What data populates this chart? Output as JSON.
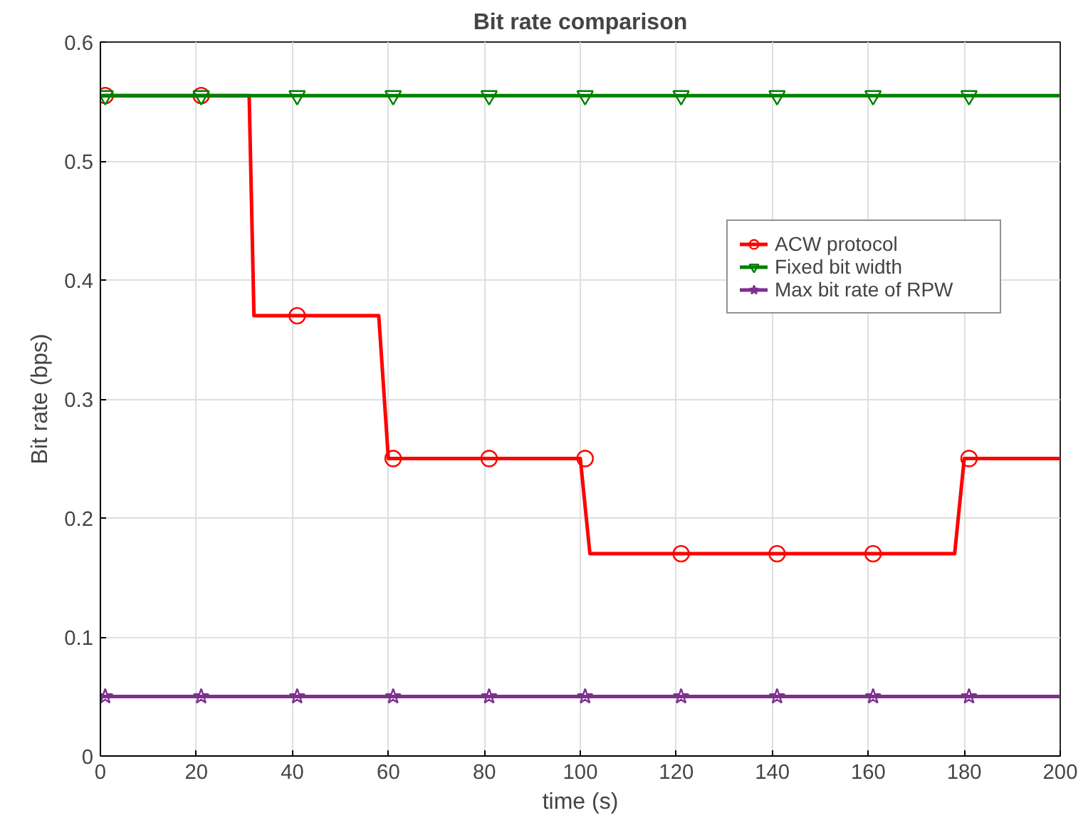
{
  "chart_data": {
    "type": "line",
    "title": "Bit rate comparison",
    "xlabel": "time (s)",
    "ylabel": "Bit rate (bps)",
    "xlim": [
      0,
      200
    ],
    "xticks": [
      0,
      20,
      40,
      60,
      80,
      100,
      120,
      140,
      160,
      180,
      200
    ],
    "ylim": [
      0,
      0.6
    ],
    "yticks": [
      0,
      0.1,
      0.2,
      0.3,
      0.4,
      0.5,
      0.6
    ],
    "grid": true,
    "legend": "top right",
    "line_style": "solid",
    "series": [
      {
        "name": "ACW protocol",
        "color": "#ff0000",
        "marker": "none",
        "x": [
          0,
          31,
          32,
          58,
          60,
          100,
          102,
          178,
          180,
          200
        ],
        "values": [
          0.555,
          0.555,
          0.37,
          0.37,
          0.25,
          0.25,
          0.17,
          0.17,
          0.25,
          0.25
        ]
      },
      {
        "color": "#ff0000",
        "type": "scatter",
        "marker": "circle",
        "x": [
          1,
          21,
          41,
          61,
          81,
          101,
          121,
          141,
          161,
          181
        ],
        "values": [
          0.555,
          0.555,
          0.37,
          0.25,
          0.25,
          0.25,
          0.17,
          0.17,
          0.17,
          0.25
        ]
      },
      {
        "name": "Fixed bit width",
        "color": "#008000",
        "marker": "none",
        "x": [
          0,
          200
        ],
        "values": [
          0.555,
          0.555
        ]
      },
      {
        "color": "#008000",
        "type": "scatter",
        "marker": "triangle",
        "x": [
          1,
          21,
          41,
          61,
          81,
          101,
          121,
          141,
          161,
          181
        ],
        "values": [
          0.555,
          0.555,
          0.555,
          0.555,
          0.555,
          0.555,
          0.555,
          0.555,
          0.555,
          0.555
        ]
      },
      {
        "name": "Max bit rate of RPW",
        "color": "#7e2f8e",
        "marker": "none",
        "x": [
          0,
          200
        ],
        "values": [
          0.05,
          0.05
        ]
      },
      {
        "color": "#7e2f8e",
        "type": "scatter",
        "marker": "star",
        "x": [
          1,
          21,
          41,
          61,
          81,
          101,
          121,
          141,
          161,
          181
        ],
        "values": [
          0.05,
          0.05,
          0.05,
          0.05,
          0.05,
          0.05,
          0.05,
          0.05,
          0.05,
          0.05
        ]
      }
    ]
  }
}
